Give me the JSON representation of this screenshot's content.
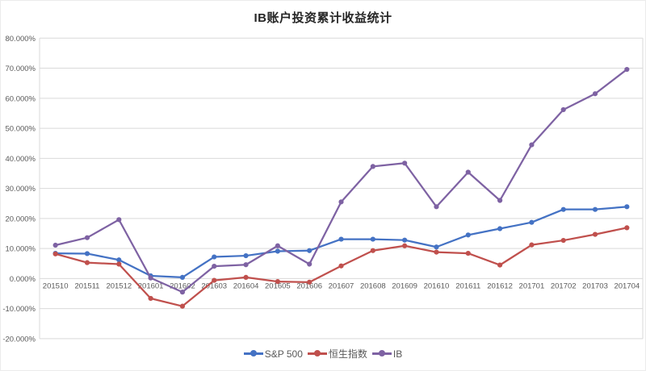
{
  "title": "IB账户投资累计收益统计",
  "colors": {
    "background": "#ffffff",
    "gridline": "#d9d9d9",
    "plot_border": "#d9d9d9",
    "axis_text": "#595959",
    "title_text": "#262626",
    "series_blue": "#4472c4",
    "series_red": "#c0504d",
    "series_purple": "#7e62a3"
  },
  "chart_data": {
    "type": "line",
    "title": "IB账户投资累计收益统计",
    "xlabel": "",
    "ylabel": "",
    "grid": true,
    "legend_position": "bottom",
    "ylim": [
      -20,
      80
    ],
    "ytick_step": 10,
    "ytick_labels": [
      "80.000%",
      "70.000%",
      "60.000%",
      "50.000%",
      "40.000%",
      "30.000%",
      "20.000%",
      "10.000%",
      "0.000%",
      "-10.000%",
      "-20.000%"
    ],
    "categories": [
      "201510",
      "201511",
      "201512",
      "201601",
      "201602",
      "201603",
      "201604",
      "201605",
      "201606",
      "201607",
      "201608",
      "201609",
      "201610",
      "201611",
      "201612",
      "201701",
      "201702",
      "201703",
      "201704"
    ],
    "series": [
      {
        "name": "S&P 500",
        "color": "#4472c4",
        "values": [
          8.4,
          8.3,
          6.2,
          0.9,
          0.4,
          7.2,
          7.6,
          9.1,
          9.3,
          13.1,
          13.1,
          12.8,
          10.5,
          14.5,
          16.6,
          18.7,
          23.0,
          23.0,
          23.9
        ]
      },
      {
        "name": "恒生指数",
        "color": "#c0504d",
        "values": [
          8.2,
          5.3,
          4.8,
          -6.6,
          -9.2,
          -0.6,
          0.4,
          -1.0,
          -1.2,
          4.2,
          9.3,
          10.9,
          8.8,
          8.4,
          4.5,
          11.2,
          12.7,
          14.7,
          16.9
        ]
      },
      {
        "name": "IB",
        "color": "#7e62a3",
        "values": [
          11.1,
          13.6,
          19.6,
          0.2,
          -4.5,
          4.1,
          4.6,
          10.9,
          4.8,
          25.5,
          37.3,
          38.4,
          23.9,
          35.4,
          26.0,
          44.5,
          56.2,
          61.5,
          69.6
        ]
      }
    ]
  }
}
